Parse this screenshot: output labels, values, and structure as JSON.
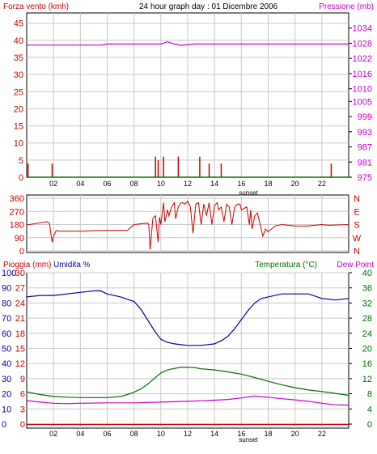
{
  "title": "24 hour graph day : 01 Dicembre 2006",
  "colors": {
    "wind": "#cc0000",
    "gust": "#007000",
    "pressure": "#cc00cc",
    "direction": "#cc0000",
    "humidity": "#0000aa",
    "temperature": "#007000",
    "dewpoint": "#cc00cc",
    "rain": "#cc0000",
    "grid": "#c8c8c8",
    "text": "#000000"
  },
  "x_ticks": [
    "02",
    "04",
    "06",
    "08",
    "10",
    "12",
    "14",
    "16",
    "18",
    "20",
    "22"
  ],
  "sunset_label": "sunset",
  "chart_data": [
    {
      "type": "line",
      "panel": "wind-pressure",
      "left_label": "Forza vento (kmh)",
      "right_label": "Pressione (mb)",
      "left_ticks": [
        "0",
        "5",
        "10",
        "15",
        "20",
        "25",
        "30",
        "35",
        "40",
        "45"
      ],
      "right_ticks": [
        "975",
        "981",
        "987",
        "993",
        "999",
        "1005",
        "1010",
        "1016",
        "1022",
        "1028",
        "1034"
      ],
      "xlim": [
        0,
        24
      ],
      "ylim_left": [
        0,
        48
      ],
      "ylim_right": [
        975,
        1040
      ],
      "series": [
        {
          "role": "pressure",
          "axis": "right",
          "x": [
            0,
            5.5,
            6,
            10,
            10.5,
            11,
            11.5,
            12.5,
            24
          ],
          "y": [
            1027.3,
            1027.3,
            1027.7,
            1027.7,
            1028.6,
            1027.7,
            1027.2,
            1027.7,
            1027.7
          ]
        },
        {
          "role": "wind",
          "axis": "left",
          "x": [
            0.1,
            1.9,
            9.6,
            9.8,
            10.2,
            11.3,
            12.9,
            13.6,
            14.5,
            22.7
          ],
          "y": [
            4,
            4,
            6,
            5,
            6,
            6,
            6,
            4,
            4,
            4
          ]
        }
      ]
    },
    {
      "type": "line",
      "panel": "wind-direction",
      "left_ticks": [
        "0",
        "90",
        "180",
        "270",
        "360"
      ],
      "right_ticks": [
        "N",
        "W",
        "S",
        "E",
        "N"
      ],
      "xlim": [
        0,
        24
      ],
      "ylim": [
        0,
        360
      ],
      "series": [
        {
          "role": "direction",
          "x": [
            0,
            0.2,
            1.5,
            1.7,
            1.8,
            1.9,
            2.0,
            2.2,
            2.4,
            4.0,
            5.5,
            7.5,
            8.0,
            9.0,
            9.1,
            9.2,
            9.4,
            9.6,
            9.8,
            9.9,
            10.0,
            10.2,
            10.3,
            10.5,
            10.6,
            10.8,
            11.0,
            11.1,
            11.3,
            11.5,
            11.6,
            11.8,
            12.0,
            12.2,
            12.4,
            12.6,
            12.8,
            13.0,
            13.2,
            13.4,
            13.6,
            13.8,
            14.0,
            14.2,
            14.3,
            14.5,
            14.7,
            14.9,
            15.1,
            15.3,
            15.5,
            15.7,
            15.9,
            16.0,
            16.2,
            16.4,
            16.6,
            16.7,
            16.8,
            17.0,
            17.2,
            17.4,
            17.6,
            17.8,
            18.0,
            18.5,
            19.0,
            20.0,
            21.0,
            22.0,
            22.5,
            24
          ],
          "y": [
            180,
            180,
            200,
            190,
            120,
            60,
            100,
            140,
            135,
            135,
            140,
            140,
            180,
            190,
            180,
            10,
            220,
            240,
            60,
            230,
            180,
            330,
            200,
            280,
            240,
            300,
            330,
            220,
            300,
            330,
            330,
            320,
            340,
            300,
            120,
            320,
            330,
            180,
            320,
            240,
            330,
            180,
            310,
            330,
            280,
            300,
            200,
            320,
            300,
            180,
            300,
            320,
            320,
            280,
            290,
            300,
            180,
            280,
            150,
            240,
            260,
            180,
            100,
            150,
            130,
            170,
            180,
            170,
            170,
            180,
            175,
            180
          ]
        }
      ]
    },
    {
      "type": "line",
      "panel": "rain-humidity-temperature",
      "left_label": "Pioggia (mm)",
      "humidity_label": "Umidita %",
      "right_label": "Temperatura (°C)",
      "dewpoint_label": "Dew Point",
      "left_ticks_rain": [
        "0",
        "3",
        "6",
        "9",
        "12",
        "15",
        "18",
        "21",
        "24",
        "27",
        "30"
      ],
      "left_ticks_humidity": [
        "0",
        "10",
        "20",
        "30",
        "40",
        "50",
        "60",
        "70",
        "80",
        "90",
        "100"
      ],
      "right_ticks_temperature": [
        "0",
        "4",
        "8",
        "12",
        "16",
        "20",
        "24",
        "28",
        "32",
        "36",
        "40"
      ],
      "xlim": [
        0,
        24
      ],
      "ylim_humidity": [
        0,
        100
      ],
      "ylim_temperature": [
        0,
        40
      ],
      "series": [
        {
          "role": "humidity",
          "axis": "humidity",
          "x": [
            0,
            1,
            2,
            3,
            4,
            5,
            5.5,
            6,
            7,
            8,
            8.5,
            9,
            9.5,
            10,
            10.5,
            11,
            12,
            13,
            14,
            14.5,
            15,
            15.5,
            16,
            16.5,
            17,
            17.5,
            18,
            19,
            20,
            21,
            22,
            23,
            24
          ],
          "y": [
            84,
            85,
            85,
            86,
            87,
            88,
            88,
            86,
            84,
            81,
            76,
            69,
            62,
            56,
            54,
            53,
            52,
            52,
            53,
            55,
            58,
            63,
            69,
            75,
            80,
            83,
            84,
            86,
            86,
            86,
            83,
            82,
            83
          ]
        },
        {
          "role": "temperature",
          "axis": "temperature",
          "x": [
            0,
            1,
            2,
            3,
            4,
            5,
            6,
            7,
            7.5,
            8,
            8.5,
            9,
            9.5,
            10,
            10.5,
            11,
            11.5,
            12,
            12.5,
            13,
            14,
            15,
            16,
            17,
            18,
            19,
            20,
            21,
            22,
            23,
            24
          ],
          "y": [
            8.5,
            7.8,
            7.3,
            7.1,
            7.0,
            7.0,
            7.0,
            7.3,
            7.8,
            8.4,
            9.3,
            10.5,
            12.0,
            13.5,
            14.3,
            14.7,
            15.0,
            15.0,
            14.9,
            14.6,
            14.3,
            13.8,
            13.2,
            12.3,
            11.3,
            10.4,
            9.6,
            9.0,
            8.6,
            8.1,
            7.6
          ]
        },
        {
          "role": "dewpoint",
          "axis": "temperature",
          "x": [
            0,
            1,
            2,
            3,
            4,
            6,
            8,
            10,
            12,
            14,
            15,
            16,
            17,
            18,
            19,
            20,
            21,
            22,
            23,
            24
          ],
          "y": [
            6.2,
            5.8,
            5.5,
            5.4,
            5.5,
            5.6,
            5.6,
            5.8,
            6.0,
            6.3,
            6.5,
            6.9,
            7.4,
            7.1,
            6.7,
            6.4,
            6.0,
            5.5,
            5.1,
            5.0
          ]
        },
        {
          "role": "rain",
          "axis": "rain",
          "x": [
            0,
            24
          ],
          "y": [
            0,
            0
          ]
        }
      ]
    }
  ]
}
